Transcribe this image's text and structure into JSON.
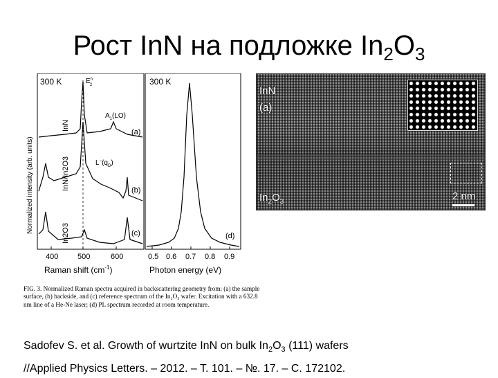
{
  "title": {
    "prefix": "Рост In",
    "n": "N на подложке In",
    "sub1": "2",
    "o": "O",
    "sub2": "3"
  },
  "figure": {
    "raman": {
      "temp_label_left": "300 K",
      "temp_label_right": "300 K",
      "ylabel": "Normalized intensity (arb. units)",
      "xlabel_left": "Raman shift (cm",
      "xlabel_left_sup": "-1",
      "xlabel_left_tail": ")",
      "xlabel_right": "Photon energy (eV)",
      "x_ticks_left": [
        "400",
        "500",
        "600"
      ],
      "x_ticks_right": [
        "0.5",
        "0.6",
        "0.7",
        "0.8",
        "0.9"
      ],
      "peak_E2": "E",
      "peak_E2_sub": "2",
      "peak_E2_sup": "h",
      "peak_A1": "A",
      "peak_A1_sub": "1",
      "peak_A1_tail": "(LO)",
      "peak_L": "L",
      "peak_L_sup": "−",
      "peak_L_tail": "(q",
      "peak_L_sub": "D",
      "peak_L_close": ")",
      "series_a": "InN",
      "series_b": "InN/In2O3",
      "series_c": "In2O3",
      "tag_a": "(a)",
      "tag_b": "(b)",
      "tag_c": "(c)",
      "tag_d": "(d)"
    },
    "tem": {
      "label_top": "InN",
      "label_top_tag": "(a)",
      "label_bottom": "In",
      "label_bottom_sub1": "2",
      "label_bottom_o": "O",
      "label_bottom_sub2": "3",
      "scale": "2 nm"
    },
    "caption": {
      "fig_no": "FIG. 3.",
      "text": " Normalized Raman spectra acquired in backscattering geometry from: (a) the sample surface, (b) backside, and (c) reference spectrum of the In₂O₃ wafer. Excitation with a 632.8 nm line of a He-Ne laser; (d) PL spectrum recorded at room temperature."
    }
  },
  "citation": {
    "line1_a": "Sadofev S. et al. Growth of wurtzite InN on bulk In",
    "line1_sub1": "2",
    "line1_b": "O",
    "line1_sub2": "3",
    "line1_c": " (111) wafers",
    "line2": "//Applied Physics Letters. – 2012. – T. 101. – №. 17. – С. 172102."
  }
}
